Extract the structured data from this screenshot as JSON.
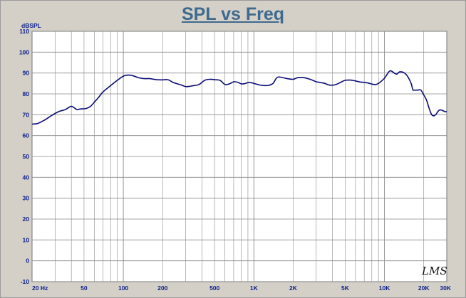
{
  "chart_data": {
    "type": "line",
    "title": "SPL vs Freq",
    "ylabel": "dBSPL",
    "xlabel": "",
    "xscale": "log",
    "xlim": [
      20,
      30000
    ],
    "ylim": [
      -10,
      110
    ],
    "grid": true,
    "y_ticks": [
      "110",
      "100",
      "90",
      "80",
      "70",
      "60",
      "50",
      "40",
      "30",
      "20",
      "10",
      "0",
      "-10"
    ],
    "x_ticks": [
      {
        "value": 20,
        "label": "20 Hz"
      },
      {
        "value": 50,
        "label": "50"
      },
      {
        "value": 100,
        "label": "100"
      },
      {
        "value": 200,
        "label": "200"
      },
      {
        "value": 500,
        "label": "500"
      },
      {
        "value": 1000,
        "label": "1K"
      },
      {
        "value": 2000,
        "label": "2K"
      },
      {
        "value": 5000,
        "label": "5K"
      },
      {
        "value": 10000,
        "label": "10K"
      },
      {
        "value": 20000,
        "label": "20K"
      },
      {
        "value": 30000,
        "label": "30K"
      }
    ],
    "series": [
      {
        "color": "#0a0a78",
        "x": [
          20,
          22,
          25,
          28,
          32,
          36,
          40,
          44,
          46,
          48,
          52,
          56,
          60,
          65,
          70,
          80,
          90,
          100,
          110,
          120,
          130,
          140,
          150,
          160,
          180,
          200,
          220,
          240,
          260,
          280,
          300,
          320,
          340,
          380,
          420,
          460,
          500,
          550,
          600,
          650,
          700,
          750,
          800,
          850,
          900,
          950,
          1000,
          1100,
          1200,
          1300,
          1400,
          1500,
          1600,
          1800,
          2000,
          2100,
          2200,
          2400,
          2600,
          2800,
          3000,
          3200,
          3500,
          3800,
          4200,
          4600,
          5000,
          5500,
          6000,
          6500,
          7000,
          7500,
          8000,
          8500,
          9000,
          10000,
          11000,
          12000,
          12500,
          13000,
          14000,
          15000,
          16000,
          16500,
          17000,
          18000,
          19000,
          20000,
          21000,
          22000,
          23000,
          24000,
          25000,
          26000,
          27000,
          28000,
          29000,
          30000
        ],
        "y": [
          65.5,
          65.8,
          67.5,
          69.5,
          71.5,
          72.5,
          74.0,
          72.5,
          72.7,
          72.8,
          73.0,
          74.0,
          76.0,
          78.5,
          81.0,
          84.0,
          86.5,
          88.5,
          89.0,
          88.6,
          87.8,
          87.4,
          87.3,
          87.3,
          86.8,
          86.7,
          86.8,
          85.5,
          84.8,
          84.2,
          83.5,
          83.6,
          83.9,
          84.5,
          86.5,
          87.0,
          86.8,
          86.5,
          84.5,
          84.8,
          85.8,
          85.6,
          84.8,
          84.9,
          85.4,
          85.4,
          85.0,
          84.3,
          84.0,
          84.1,
          85.0,
          87.8,
          88.0,
          87.3,
          87.0,
          87.5,
          87.8,
          87.8,
          87.3,
          86.6,
          85.8,
          85.5,
          85.0,
          84.2,
          84.4,
          85.5,
          86.5,
          86.6,
          86.2,
          85.7,
          85.5,
          85.2,
          84.7,
          84.5,
          85.0,
          87.5,
          91.0,
          89.8,
          89.5,
          90.5,
          90.3,
          88.5,
          85.0,
          82.0,
          81.8,
          81.8,
          81.8,
          79.5,
          77.0,
          73.0,
          70.0,
          69.5,
          70.5,
          72.0,
          72.3,
          72.0,
          71.5,
          71.5
        ]
      }
    ]
  },
  "logo_text": "LMS"
}
